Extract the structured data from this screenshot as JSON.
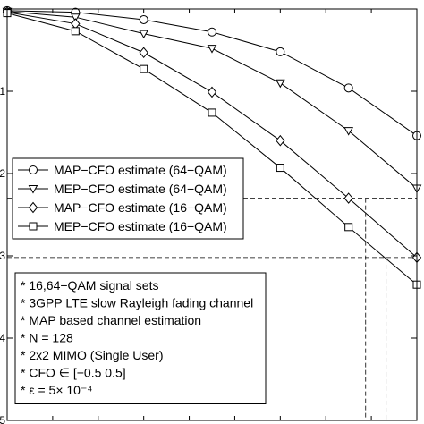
{
  "chart_data": {
    "type": "line",
    "x": [
      0,
      1,
      2,
      3,
      4,
      5,
      6
    ],
    "ylim": [
      -5,
      0
    ],
    "y_tick_labels": [
      "1",
      "2",
      "3",
      "4",
      "5"
    ],
    "grid": false,
    "legend_position": "middle-left",
    "series": [
      {
        "name": "MAP−CFO estimate (64−QAM)",
        "marker": "circle",
        "values": [
          -0.02,
          -0.04,
          -0.13,
          -0.28,
          -0.52,
          -0.96,
          -1.54
        ]
      },
      {
        "name": "MEP−CFO estimate (64−QAM)",
        "marker": "triangle-down",
        "values": [
          -0.03,
          -0.1,
          -0.3,
          -0.48,
          -0.9,
          -1.48,
          -2.18
        ]
      },
      {
        "name": "MAP−CFO estimate (16−QAM)",
        "marker": "diamond",
        "values": [
          -0.04,
          -0.18,
          -0.53,
          -1.01,
          -1.6,
          -2.3,
          -3.02
        ]
      },
      {
        "name": "MEP−CFO estimate (16−QAM)",
        "marker": "square",
        "values": [
          -0.05,
          -0.27,
          -0.73,
          -1.26,
          -1.93,
          -2.65,
          -3.35
        ]
      }
    ],
    "reference_lines": [
      {
        "series": "MAP−CFO estimate (16−QAM)",
        "y": -2.3,
        "x": 5.25
      },
      {
        "series": "MEP−CFO estimate (16−QAM)",
        "y": -3.02,
        "x": 5.55
      }
    ],
    "annotations": [
      "* 16,64−QAM signal sets",
      "* 3GPP LTE slow Rayleigh fading channel",
      "* MAP based channel estimation",
      "* N = 128",
      "* 2x2 MIMO (Single User)",
      "* CFO ∈ [−0.5 0.5]",
      "* ε = 5× 10⁻⁴"
    ]
  }
}
